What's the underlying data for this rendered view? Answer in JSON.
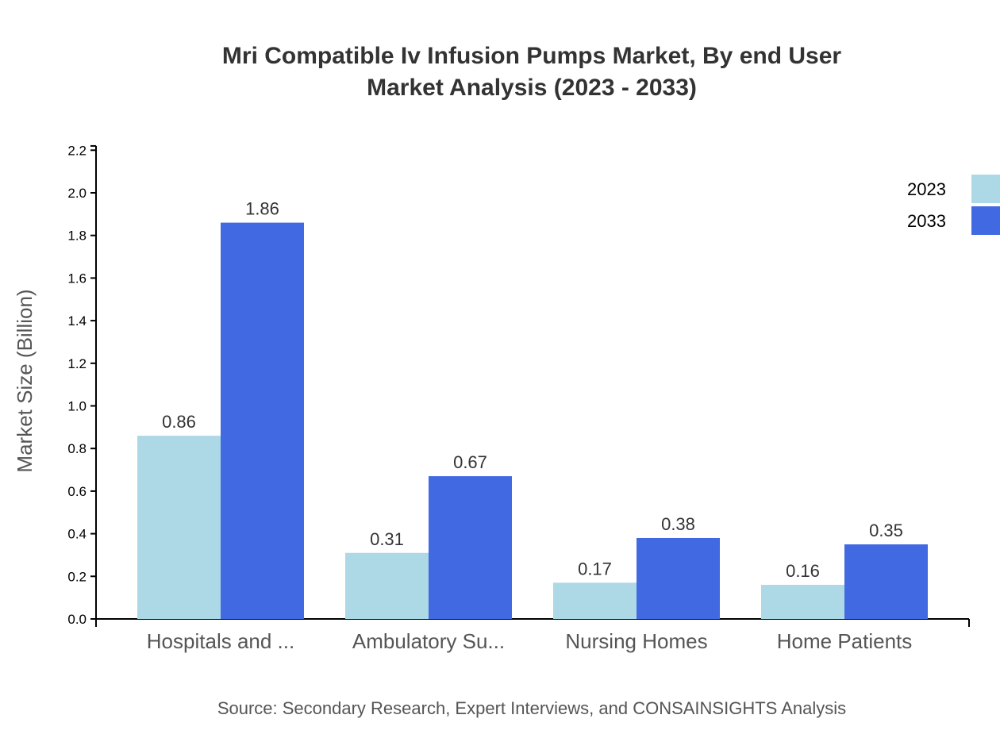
{
  "chart_data": {
    "type": "bar",
    "title_lines": [
      "Mri Compatible Iv Infusion Pumps Market, By end User",
      "Market Analysis (2023 - 2033)"
    ],
    "xlabel": "",
    "ylabel": "Market Size (Billion)",
    "categories": [
      "Hospitals and ...",
      "Ambulatory Su...",
      "Nursing Homes",
      "Home Patients"
    ],
    "series": [
      {
        "name": "2023",
        "color": "#add8e6",
        "values": [
          0.86,
          0.31,
          0.17,
          0.16
        ]
      },
      {
        "name": "2033",
        "color": "#4169e1",
        "values": [
          1.86,
          0.67,
          0.38,
          0.35
        ]
      }
    ],
    "ylim": [
      0,
      2.22
    ],
    "yticks": [
      "0.0",
      "0.2",
      "0.4",
      "0.6",
      "0.8",
      "1.0",
      "1.2",
      "1.4",
      "1.6",
      "1.8",
      "2.0",
      "2.2"
    ],
    "grid": false,
    "legend_position": "top-right",
    "source": "Source: Secondary Research, Expert Interviews, and CONSAINSIGHTS Analysis"
  }
}
